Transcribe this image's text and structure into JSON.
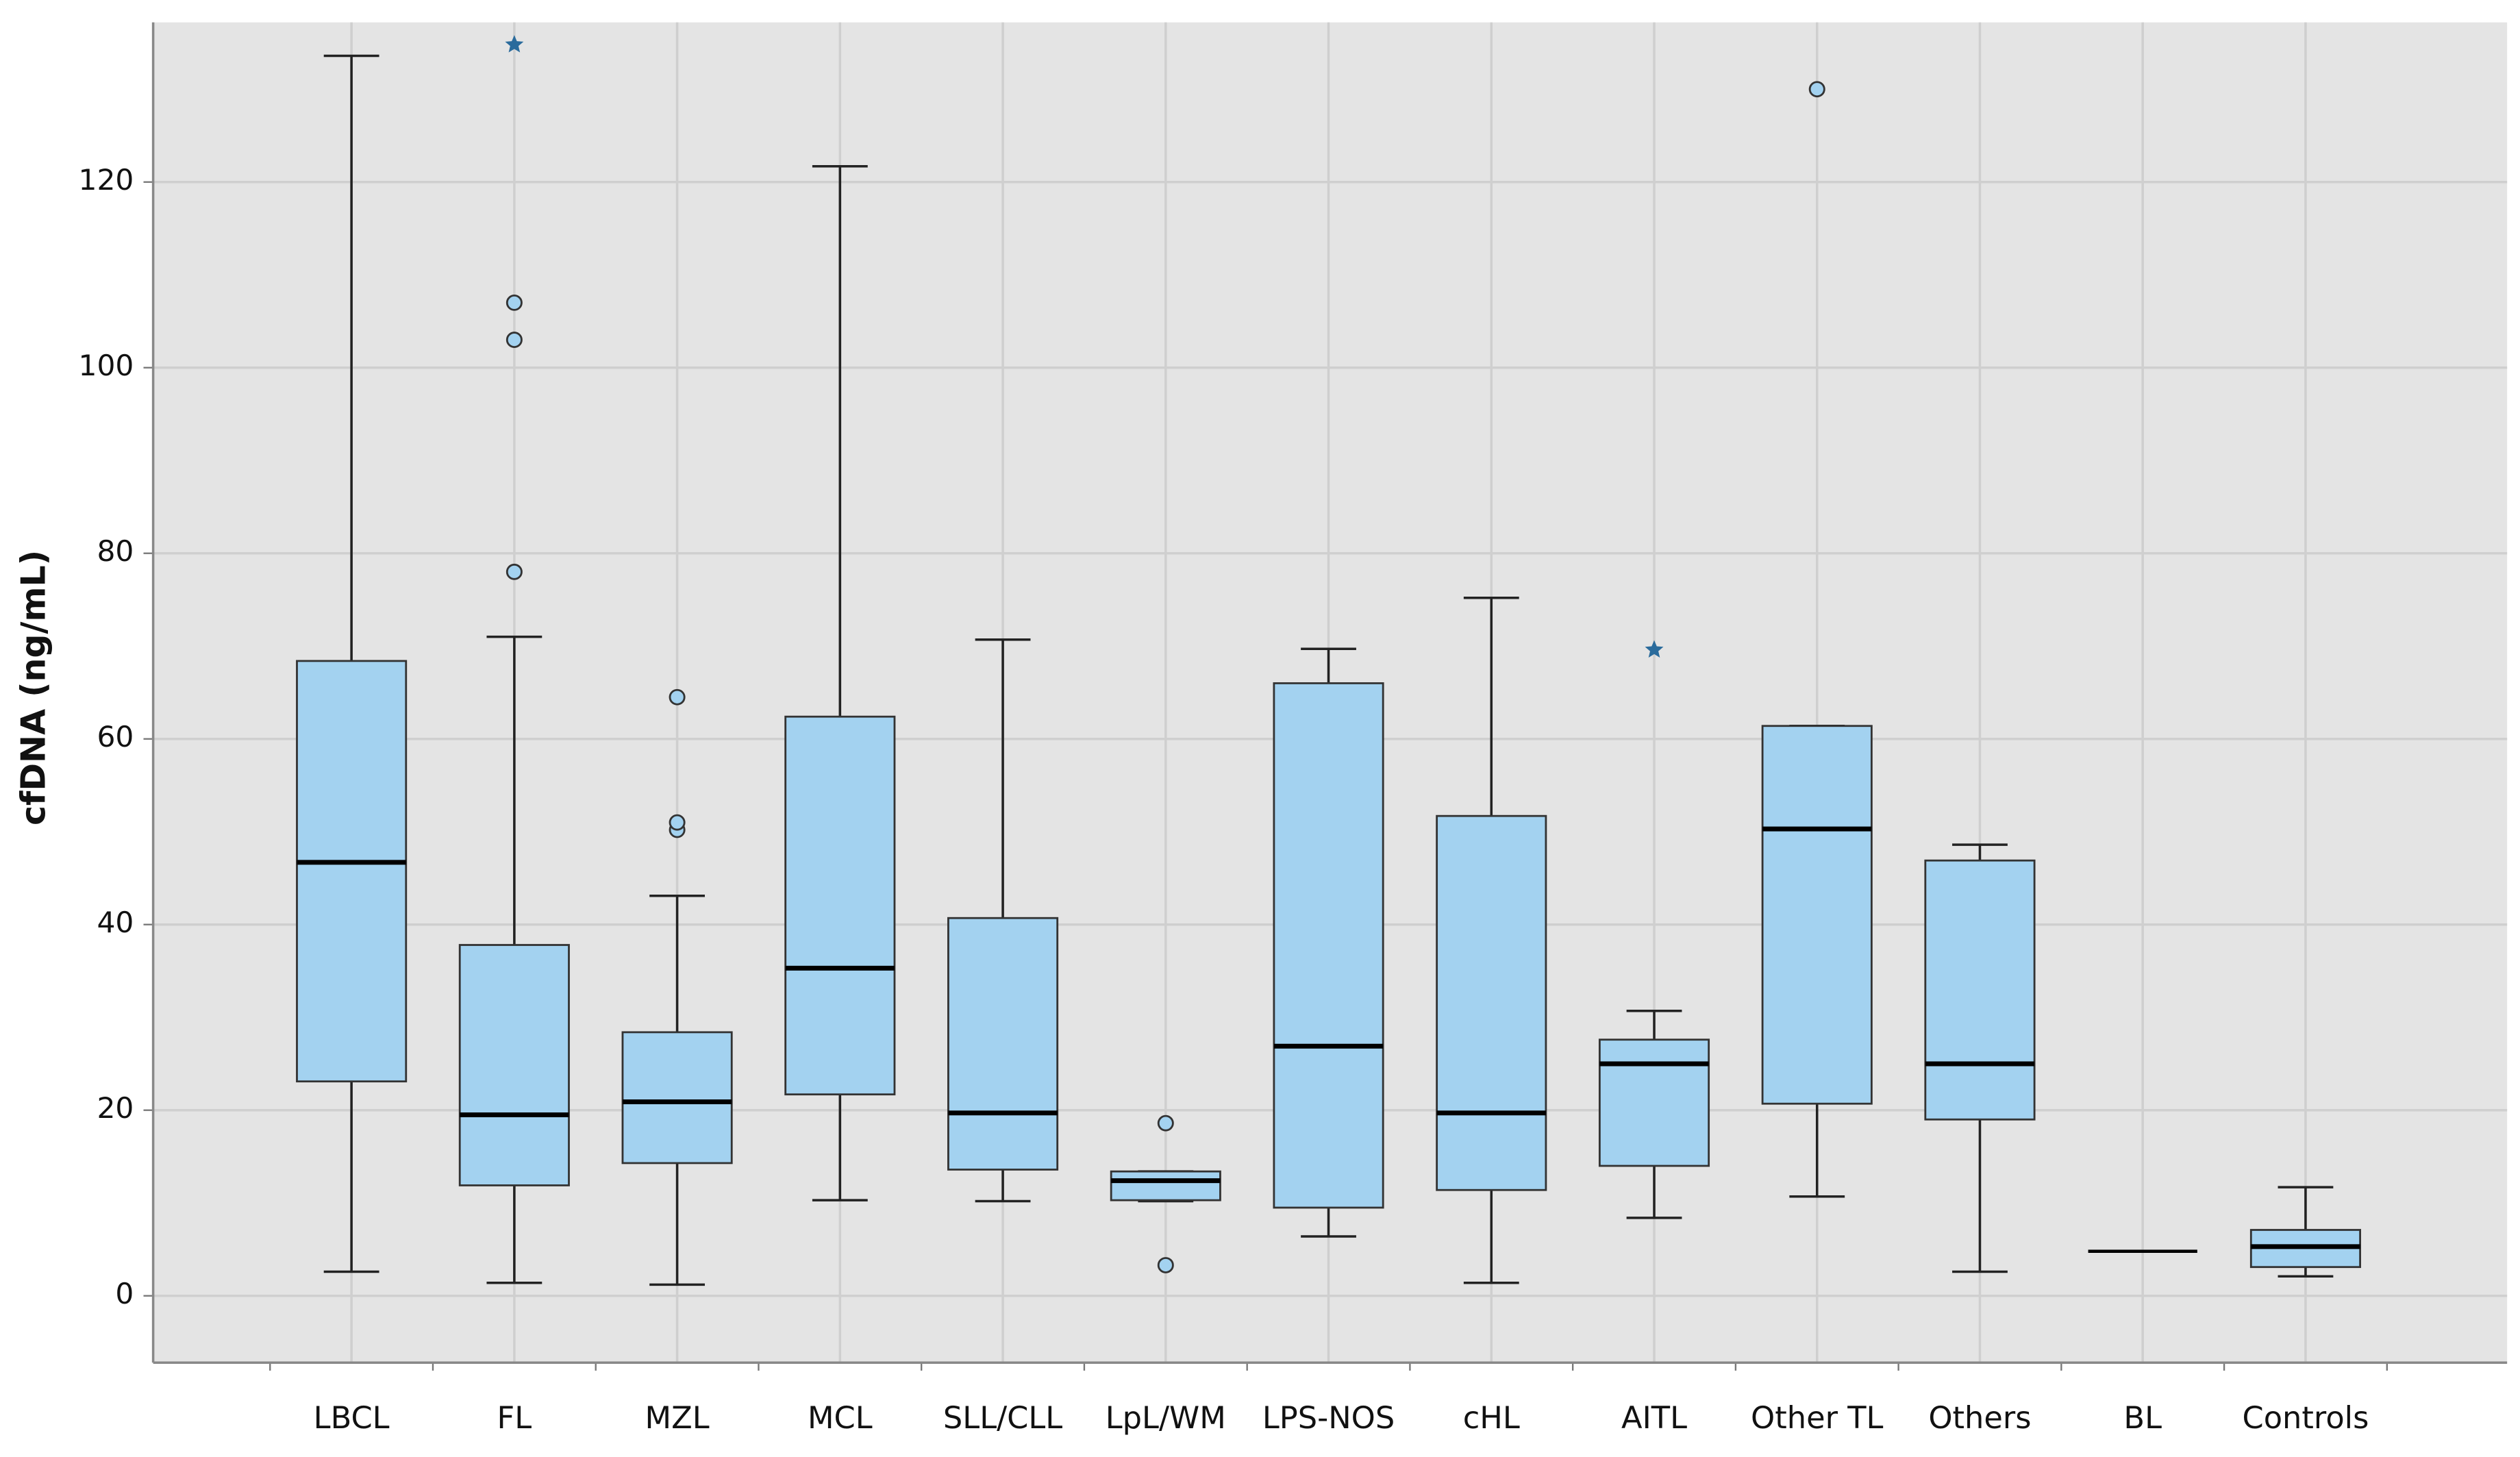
{
  "chart_data": {
    "type": "box",
    "y_label": "cfDNA (ng/mL)",
    "categories": [
      "LBCL",
      "FL",
      "MZL",
      "MCL",
      "SLL/CLL",
      "LpL/WM",
      "LPS-NOS",
      "cHL",
      "AITL",
      "Other TL",
      "Others",
      "BL",
      "Controls"
    ],
    "boxes": [
      {
        "low": 2.6,
        "q1": 23.1,
        "median": 46.7,
        "q3": 68.4,
        "high": 133.6,
        "outliers": [],
        "extremes": []
      },
      {
        "low": 1.4,
        "q1": 11.9,
        "median": 19.5,
        "q3": 37.8,
        "high": 71.0,
        "outliers": [
          78,
          103,
          107
        ],
        "extremes": [
          134.8
        ]
      },
      {
        "low": 1.2,
        "q1": 14.3,
        "median": 20.9,
        "q3": 28.4,
        "high": 43.1,
        "outliers": [
          50.2,
          51,
          64.5
        ],
        "extremes": []
      },
      {
        "low": 10.3,
        "q1": 21.7,
        "median": 35.3,
        "q3": 62.4,
        "high": 121.7,
        "outliers": [],
        "extremes": []
      },
      {
        "low": 10.2,
        "q1": 13.6,
        "median": 19.7,
        "q3": 40.7,
        "high": 70.7,
        "outliers": [],
        "extremes": []
      },
      {
        "low": 10.2,
        "q1": 10.3,
        "median": 12.4,
        "q3": 13.4,
        "high": 13.4,
        "outliers": [
          3.3,
          18.6
        ],
        "extremes": []
      },
      {
        "low": 6.4,
        "q1": 9.5,
        "median": 26.9,
        "q3": 66.0,
        "high": 69.7,
        "outliers": [],
        "extremes": []
      },
      {
        "low": 1.4,
        "q1": 11.4,
        "median": 19.7,
        "q3": 51.7,
        "high": 75.2,
        "outliers": [],
        "extremes": []
      },
      {
        "low": 8.4,
        "q1": 14.0,
        "median": 25.0,
        "q3": 27.6,
        "high": 30.7,
        "outliers": [],
        "extremes": [
          69.6
        ]
      },
      {
        "low": 10.7,
        "q1": 20.7,
        "median": 50.3,
        "q3": 61.4,
        "high": 61.4,
        "outliers": [
          130
        ],
        "extremes": []
      },
      {
        "low": 2.6,
        "q1": 19.0,
        "median": 25.0,
        "q3": 46.9,
        "high": 48.6,
        "outliers": [],
        "extremes": []
      },
      {
        "low": 4.8,
        "q1": 4.8,
        "median": 4.8,
        "q3": 4.8,
        "high": 4.8,
        "outliers": [],
        "extremes": []
      },
      {
        "low": 2.1,
        "q1": 3.1,
        "median": 5.3,
        "q3": 7.1,
        "high": 11.7,
        "outliers": [],
        "extremes": []
      }
    ],
    "color": "#a3d2f0",
    "extreme_color": "#2a6b9c",
    "ylim": [
      -7.2,
      137.2
    ],
    "yticks": [
      0,
      20,
      40,
      60,
      80,
      100,
      120
    ],
    "grid": true
  }
}
